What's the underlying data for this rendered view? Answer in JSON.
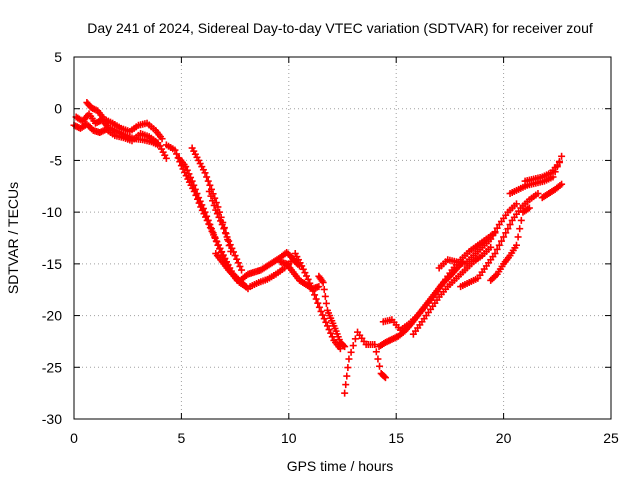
{
  "chart_data": {
    "type": "scatter",
    "title": "Day 241 of 2024, Sidereal Day-to-day VTEC variation (SDTVAR) for receiver zouf",
    "xlabel": "GPS time / hours",
    "ylabel": "SDTVAR / TECUs",
    "xlim": [
      0,
      25
    ],
    "ylim": [
      -30,
      5
    ],
    "xticks": [
      0,
      5,
      10,
      15,
      20,
      25
    ],
    "yticks": [
      5,
      0,
      -5,
      -10,
      -15,
      -20,
      -25,
      -30
    ],
    "xtick_labels": [
      "0",
      "5",
      "10",
      "15",
      "20",
      "25"
    ],
    "ytick_labels": [
      "5",
      "0",
      "-5",
      "-10",
      "-15",
      "-20",
      "-25",
      "-30"
    ],
    "grid": true,
    "marker": "plus",
    "color": "#ff0000",
    "series": [
      {
        "name": "segment-1",
        "x": [
          0.1,
          0.4,
          0.7,
          1.0,
          1.3,
          1.6,
          2.0,
          2.4,
          2.8,
          3.2,
          3.6,
          4.0,
          4.3
        ],
        "y": [
          -0.8,
          -1.2,
          -0.5,
          -1.4,
          -1.1,
          -1.8,
          -2.2,
          -2.6,
          -2.9,
          -3.0,
          -3.2,
          -3.6,
          -4.8
        ]
      },
      {
        "name": "segment-2",
        "x": [
          0.0,
          0.3,
          0.6,
          0.9,
          1.2,
          1.5,
          1.9,
          2.3,
          2.7,
          3.1,
          3.5,
          3.9
        ],
        "y": [
          -1.6,
          -1.9,
          -1.5,
          -2.1,
          -2.3,
          -2.0,
          -2.6,
          -2.8,
          -3.1,
          -2.4,
          -2.7,
          -3.3
        ]
      },
      {
        "name": "segment-3",
        "x": [
          0.6,
          0.8,
          1.1,
          1.4,
          1.8,
          2.2,
          2.6,
          3.0,
          3.4,
          3.8,
          4.1
        ],
        "y": [
          0.6,
          0.1,
          -0.2,
          -1.0,
          -1.4,
          -1.9,
          -2.2,
          -1.6,
          -1.4,
          -2.1,
          -2.9
        ]
      },
      {
        "name": "segment-4",
        "x": [
          4.3,
          4.7,
          5.0,
          5.3,
          5.6,
          5.9,
          6.2,
          6.5,
          6.8,
          7.1,
          7.4,
          7.7,
          8.0
        ],
        "y": [
          -3.5,
          -4.0,
          -5.5,
          -6.8,
          -8.0,
          -9.5,
          -10.8,
          -12.2,
          -13.5,
          -14.8,
          -16.0,
          -16.8,
          -17.2
        ]
      },
      {
        "name": "segment-5",
        "x": [
          4.9,
          5.2,
          5.5,
          5.8,
          6.1,
          6.4,
          6.7,
          7.0,
          7.3,
          7.6
        ],
        "y": [
          -4.8,
          -5.6,
          -7.0,
          -8.6,
          -10.0,
          -11.6,
          -13.2,
          -14.6,
          -15.8,
          -16.6
        ]
      },
      {
        "name": "segment-6",
        "x": [
          5.5,
          5.8,
          6.1,
          6.4,
          6.7,
          7.0,
          7.3
        ],
        "y": [
          -3.8,
          -5.0,
          -6.2,
          -7.8,
          -9.5,
          -11.5,
          -13.8
        ]
      },
      {
        "name": "segment-7",
        "x": [
          6.3,
          6.6,
          6.9,
          7.2,
          7.5,
          7.8
        ],
        "y": [
          -8.0,
          -9.8,
          -11.2,
          -12.8,
          -14.2,
          -15.6
        ]
      },
      {
        "name": "segment-8",
        "x": [
          6.6,
          6.9,
          7.2,
          7.5,
          7.8,
          8.1
        ],
        "y": [
          -14.0,
          -14.8,
          -15.6,
          -16.2,
          -16.8,
          -17.4
        ]
      },
      {
        "name": "segment-9",
        "x": [
          7.8,
          8.1,
          8.4,
          8.7,
          9.0,
          9.3,
          9.6,
          9.9,
          10.2
        ],
        "y": [
          -16.5,
          -16.0,
          -15.8,
          -15.6,
          -15.2,
          -14.8,
          -14.4,
          -13.9,
          -14.5
        ]
      },
      {
        "name": "segment-10",
        "x": [
          8.2,
          8.6,
          9.0,
          9.4,
          9.8,
          10.2,
          10.5
        ],
        "y": [
          -17.2,
          -16.8,
          -16.5,
          -16.0,
          -15.4,
          -14.6,
          -15.2
        ]
      },
      {
        "name": "segment-11",
        "x": [
          9.6,
          9.9,
          10.2,
          10.5,
          10.8,
          11.1,
          11.4
        ],
        "y": [
          -14.8,
          -15.0,
          -15.8,
          -16.6,
          -17.0,
          -17.4,
          -17.2
        ]
      },
      {
        "name": "segment-12",
        "x": [
          10.3,
          10.6,
          10.9,
          11.2,
          11.5,
          11.8,
          12.1,
          12.4
        ],
        "y": [
          -14.0,
          -15.2,
          -16.5,
          -18.0,
          -19.6,
          -21.0,
          -22.4,
          -23.2
        ]
      },
      {
        "name": "segment-13",
        "x": [
          11.4,
          11.6,
          11.8,
          12.0,
          12.2,
          12.4,
          12.6
        ],
        "y": [
          -16.2,
          -16.8,
          -19.5,
          -20.5,
          -21.5,
          -22.6,
          -23.0
        ]
      },
      {
        "name": "segment-14",
        "x": [
          12.6,
          12.8,
          13.2,
          13.6,
          14.0,
          14.3,
          14.5
        ],
        "y": [
          -27.5,
          -24.2,
          -21.6,
          -22.8,
          -22.8,
          -25.6,
          -26.0
        ]
      },
      {
        "name": "segment-15",
        "x": [
          14.2,
          14.5,
          14.8,
          15.1,
          15.4,
          15.7,
          16.0,
          16.3,
          16.6,
          16.9,
          17.2,
          17.5,
          17.8,
          18.1
        ],
        "y": [
          -23.0,
          -22.6,
          -22.3,
          -22.0,
          -21.5,
          -20.8,
          -20.0,
          -19.2,
          -18.4,
          -17.6,
          -16.8,
          -16.2,
          -15.5,
          -14.8
        ]
      },
      {
        "name": "segment-16",
        "x": [
          14.4,
          14.8,
          15.2,
          15.6,
          16.0,
          16.4,
          16.8,
          17.2,
          17.6,
          18.0,
          18.4,
          18.8,
          19.2,
          19.6
        ],
        "y": [
          -20.6,
          -20.4,
          -21.4,
          -20.8,
          -20.0,
          -19.0,
          -18.0,
          -16.8,
          -15.6,
          -14.6,
          -13.8,
          -13.2,
          -12.6,
          -12.0
        ]
      },
      {
        "name": "segment-17",
        "x": [
          15.8,
          16.2,
          16.6,
          17.0,
          17.4,
          17.8,
          18.2,
          18.6,
          19.0,
          19.4
        ],
        "y": [
          -21.8,
          -20.6,
          -19.4,
          -18.2,
          -17.2,
          -16.4,
          -15.6,
          -14.8,
          -14.2,
          -13.4
        ]
      },
      {
        "name": "segment-18",
        "x": [
          17.0,
          17.4,
          17.8,
          18.2,
          18.6,
          19.0,
          19.4,
          19.8,
          20.2,
          20.6
        ],
        "y": [
          -15.4,
          -14.6,
          -14.8,
          -15.0,
          -14.2,
          -13.4,
          -12.6,
          -11.2,
          -10.0,
          -9.2
        ]
      },
      {
        "name": "segment-19",
        "x": [
          18.0,
          18.4,
          18.8,
          19.2,
          19.6,
          20.0,
          20.4,
          20.8,
          21.2,
          21.6
        ],
        "y": [
          -17.2,
          -16.8,
          -16.4,
          -15.2,
          -14.0,
          -12.4,
          -10.8,
          -9.6,
          -8.8,
          -8.2
        ]
      },
      {
        "name": "segment-20",
        "x": [
          19.4,
          19.7,
          20.0,
          20.3,
          20.6,
          20.9,
          21.2
        ],
        "y": [
          -16.6,
          -16.0,
          -15.0,
          -14.2,
          -13.2,
          -10.0,
          -9.6
        ]
      },
      {
        "name": "segment-21",
        "x": [
          20.3,
          20.7,
          21.1,
          21.5,
          21.9,
          22.3,
          22.7
        ],
        "y": [
          -8.2,
          -7.8,
          -7.4,
          -7.2,
          -7.0,
          -6.6,
          -4.6
        ]
      },
      {
        "name": "segment-22",
        "x": [
          21.8,
          22.1,
          22.4,
          22.7
        ],
        "y": [
          -8.6,
          -8.2,
          -7.8,
          -7.3
        ]
      },
      {
        "name": "segment-23",
        "x": [
          21.0,
          21.4,
          21.8,
          22.2,
          22.6
        ],
        "y": [
          -7.0,
          -6.8,
          -6.6,
          -6.2,
          -5.2
        ]
      }
    ]
  }
}
